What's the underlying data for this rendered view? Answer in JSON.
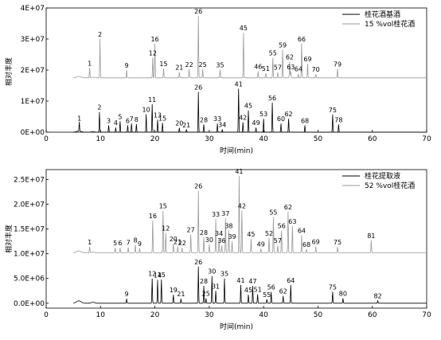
{
  "chart_data": [
    {
      "type": "line",
      "title": "",
      "xlabel": "时间(min)",
      "ylabel": "相对丰度",
      "xlim": [
        0,
        70
      ],
      "ylim": [
        0,
        40000000
      ],
      "x_ticks": [
        0,
        10,
        20,
        30,
        40,
        50,
        60,
        70
      ],
      "y_ticks": [
        {
          "v": 0,
          "label": "0E+00"
        },
        {
          "v": 10000000,
          "label": "1E+07"
        },
        {
          "v": 20000000,
          "label": "2E+07"
        },
        {
          "v": 30000000,
          "label": "3E+07"
        },
        {
          "v": 40000000,
          "label": "4E+07"
        }
      ],
      "legend_position": "top-right",
      "series": [
        {
          "name": "桂花酒基酒",
          "color": "#000000",
          "offset": 0,
          "baseline_noise": 300000,
          "peaks": [
            {
              "label": "1",
              "x": 6.1,
              "y": 3000000
            },
            {
              "label": "2",
              "x": 9.8,
              "y": 6500000
            },
            {
              "label": "3",
              "x": 11.5,
              "y": 2200000
            },
            {
              "label": "4",
              "x": 12.8,
              "y": 1500000
            },
            {
              "label": "5",
              "x": 13.6,
              "y": 3500000
            },
            {
              "label": "6",
              "x": 15.0,
              "y": 2200000
            },
            {
              "label": "7",
              "x": 15.7,
              "y": 2800000
            },
            {
              "label": "8",
              "x": 16.6,
              "y": 2600000
            },
            {
              "label": "10",
              "x": 18.4,
              "y": 5800000
            },
            {
              "label": "11",
              "x": 19.5,
              "y": 9000000
            },
            {
              "label": "13",
              "x": 20.5,
              "y": 4000000
            },
            {
              "label": "15",
              "x": 21.4,
              "y": 3000000
            },
            {
              "label": "20",
              "x": 24.5,
              "y": 1400000
            },
            {
              "label": "21",
              "x": 25.8,
              "y": 800000
            },
            {
              "label": "26",
              "x": 28.0,
              "y": 13000000
            },
            {
              "label": "28",
              "x": 29.0,
              "y": 2500000
            },
            {
              "label": "33",
              "x": 31.5,
              "y": 2800000
            },
            {
              "label": "34",
              "x": 32.4,
              "y": 900000
            },
            {
              "label": "41",
              "x": 35.4,
              "y": 14000000
            },
            {
              "label": "42",
              "x": 36.2,
              "y": 3200000
            },
            {
              "label": "45",
              "x": 37.2,
              "y": 7000000
            },
            {
              "label": "49",
              "x": 38.6,
              "y": 1500000
            },
            {
              "label": "53",
              "x": 40.0,
              "y": 4300000
            },
            {
              "label": "56",
              "x": 41.6,
              "y": 9500000
            },
            {
              "label": "60",
              "x": 43.2,
              "y": 2800000
            },
            {
              "label": "62",
              "x": 44.6,
              "y": 4300000
            },
            {
              "label": "68",
              "x": 47.6,
              "y": 2200000
            },
            {
              "label": "75",
              "x": 52.7,
              "y": 5700000
            },
            {
              "label": "78",
              "x": 53.8,
              "y": 2500000
            }
          ]
        },
        {
          "name": "15 %vol桂花酒",
          "color": "#999999",
          "offset": 17500000,
          "baseline_noise": 400000,
          "peaks": [
            {
              "label": "1",
              "x": 8.0,
              "y": 3200000
            },
            {
              "label": "2",
              "x": 9.9,
              "y": 12500000
            },
            {
              "label": "9",
              "x": 14.8,
              "y": 2500000
            },
            {
              "label": "12",
              "x": 19.6,
              "y": 6500000
            },
            {
              "label": "16",
              "x": 20.0,
              "y": 11000000
            },
            {
              "label": "15",
              "x": 21.6,
              "y": 3000000
            },
            {
              "label": "21",
              "x": 24.5,
              "y": 1800000
            },
            {
              "label": "22",
              "x": 26.3,
              "y": 2800000
            },
            {
              "label": "26",
              "x": 28.0,
              "y": 20000000
            },
            {
              "label": "25",
              "x": 28.8,
              "y": 2800000
            },
            {
              "label": "35",
              "x": 32.0,
              "y": 2600000
            },
            {
              "label": "45",
              "x": 36.3,
              "y": 14500000
            },
            {
              "label": "46",
              "x": 39.0,
              "y": 2100000
            },
            {
              "label": "51",
              "x": 40.4,
              "y": 1500000
            },
            {
              "label": "55",
              "x": 41.7,
              "y": 6500000
            },
            {
              "label": "57",
              "x": 42.6,
              "y": 1800000
            },
            {
              "label": "59",
              "x": 43.5,
              "y": 9000000
            },
            {
              "label": "62",
              "x": 44.8,
              "y": 5200000
            },
            {
              "label": "63",
              "x": 45.0,
              "y": 2000000
            },
            {
              "label": "64",
              "x": 46.4,
              "y": 1300000
            },
            {
              "label": "66",
              "x": 47.0,
              "y": 11000000
            },
            {
              "label": "69",
              "x": 48.1,
              "y": 4500000
            },
            {
              "label": "70",
              "x": 49.6,
              "y": 1200000
            },
            {
              "label": "79",
              "x": 53.6,
              "y": 2900000
            }
          ]
        }
      ]
    },
    {
      "type": "line",
      "title": "",
      "xlabel": "时间(min)",
      "ylabel": "相对丰度",
      "xlim": [
        0,
        70
      ],
      "ylim": [
        -1000000,
        27000000
      ],
      "x_ticks": [
        0,
        10,
        20,
        30,
        40,
        50,
        60,
        70
      ],
      "y_ticks": [
        {
          "v": 0,
          "label": "0.0E+00"
        },
        {
          "v": 5000000,
          "label": "5.0E+06"
        },
        {
          "v": 10000000,
          "label": "1.0E+07"
        },
        {
          "v": 15000000,
          "label": "1.5E+07"
        },
        {
          "v": 20000000,
          "label": "2.0E+07"
        },
        {
          "v": 25000000,
          "label": "2.5E+07"
        }
      ],
      "legend_position": "top-right",
      "series": [
        {
          "name": "桂花提取液",
          "color": "#000000",
          "offset": 0,
          "baseline_noise": 400000,
          "peaks": [
            {
              "label": "9",
              "x": 14.8,
              "y": 900000
            },
            {
              "label": "12",
              "x": 19.5,
              "y": 5000000
            },
            {
              "label": "14",
              "x": 20.5,
              "y": 4700000
            },
            {
              "label": "15",
              "x": 21.2,
              "y": 4800000
            },
            {
              "label": "19",
              "x": 23.4,
              "y": 1700000
            },
            {
              "label": "21",
              "x": 24.8,
              "y": 900000
            },
            {
              "label": "26",
              "x": 28.0,
              "y": 7400000
            },
            {
              "label": "28",
              "x": 29.0,
              "y": 3500000
            },
            {
              "label": "25",
              "x": 29.4,
              "y": 1000000
            },
            {
              "label": "30",
              "x": 30.5,
              "y": 5500000
            },
            {
              "label": "31",
              "x": 31.2,
              "y": 2500000
            },
            {
              "label": "35",
              "x": 32.8,
              "y": 5000000
            },
            {
              "label": "41",
              "x": 35.8,
              "y": 3700000
            },
            {
              "label": "45",
              "x": 37.2,
              "y": 1700000
            },
            {
              "label": "47",
              "x": 38.0,
              "y": 3500000
            },
            {
              "label": "51",
              "x": 38.9,
              "y": 1800000
            },
            {
              "label": "55",
              "x": 40.6,
              "y": 800000
            },
            {
              "label": "56",
              "x": 41.4,
              "y": 2300000
            },
            {
              "label": "62",
              "x": 43.6,
              "y": 1500000
            },
            {
              "label": "64",
              "x": 45.0,
              "y": 3700000
            },
            {
              "label": "75",
              "x": 52.7,
              "y": 2300000
            },
            {
              "label": "80",
              "x": 54.6,
              "y": 1000000
            },
            {
              "label": "82",
              "x": 61.0,
              "y": 500000
            }
          ]
        },
        {
          "name": "52 %vol桂花酒",
          "color": "#999999",
          "offset": 10200000,
          "baseline_noise": 300000,
          "peaks": [
            {
              "label": "1",
              "x": 8.0,
              "y": 1200000
            },
            {
              "label": "5",
              "x": 12.7,
              "y": 1000000
            },
            {
              "label": "6",
              "x": 13.6,
              "y": 1000000
            },
            {
              "label": "7",
              "x": 15.1,
              "y": 1100000
            },
            {
              "label": "8",
              "x": 16.4,
              "y": 1600000
            },
            {
              "label": "9",
              "x": 17.2,
              "y": 900000
            },
            {
              "label": "16",
              "x": 19.6,
              "y": 6500000
            },
            {
              "label": "15",
              "x": 21.5,
              "y": 8500000
            },
            {
              "label": "12",
              "x": 22.0,
              "y": 4000000
            },
            {
              "label": "20",
              "x": 23.4,
              "y": 1800000
            },
            {
              "label": "21",
              "x": 24.2,
              "y": 1300000
            },
            {
              "label": "22",
              "x": 25.0,
              "y": 1000000
            },
            {
              "label": "27",
              "x": 26.6,
              "y": 3700000
            },
            {
              "label": "26",
              "x": 28.0,
              "y": 12500000
            },
            {
              "label": "28",
              "x": 29.0,
              "y": 3100000
            },
            {
              "label": "30",
              "x": 30.0,
              "y": 1700000
            },
            {
              "label": "33",
              "x": 31.2,
              "y": 6800000
            },
            {
              "label": "34",
              "x": 31.8,
              "y": 3000000
            },
            {
              "label": "37",
              "x": 33.0,
              "y": 7000000
            },
            {
              "label": "36",
              "x": 32.3,
              "y": 1500000
            },
            {
              "label": "38",
              "x": 33.6,
              "y": 4500000
            },
            {
              "label": "39",
              "x": 34.2,
              "y": 2300000
            },
            {
              "label": "41",
              "x": 35.5,
              "y": 15500000
            },
            {
              "label": "42",
              "x": 36.0,
              "y": 8500000
            },
            {
              "label": "45",
              "x": 37.7,
              "y": 2800000
            },
            {
              "label": "49",
              "x": 39.5,
              "y": 800000
            },
            {
              "label": "52",
              "x": 41.0,
              "y": 3000000
            },
            {
              "label": "55",
              "x": 41.8,
              "y": 7200000
            },
            {
              "label": "57",
              "x": 42.6,
              "y": 1500000
            },
            {
              "label": "56",
              "x": 43.3,
              "y": 4500000
            },
            {
              "label": "62",
              "x": 44.5,
              "y": 8300000
            },
            {
              "label": "63",
              "x": 45.3,
              "y": 5400000
            },
            {
              "label": "64",
              "x": 47.0,
              "y": 3500000
            },
            {
              "label": "68",
              "x": 47.9,
              "y": 700000
            },
            {
              "label": "69",
              "x": 49.6,
              "y": 1300000
            },
            {
              "label": "75",
              "x": 53.6,
              "y": 1200000
            },
            {
              "label": "81",
              "x": 59.8,
              "y": 2500000
            }
          ]
        }
      ]
    }
  ]
}
